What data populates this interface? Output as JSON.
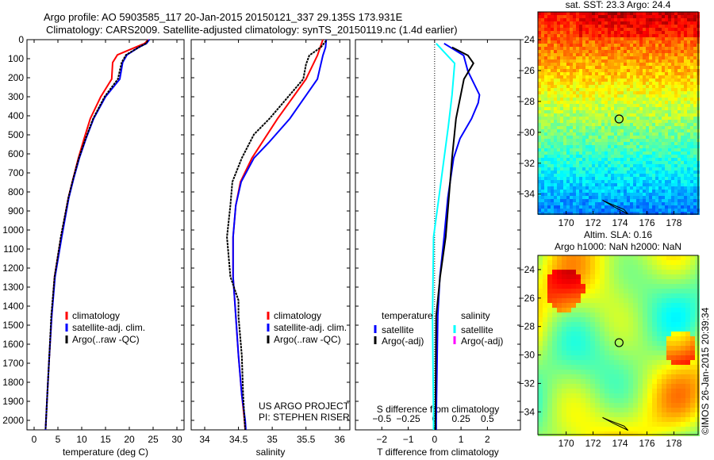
{
  "title_line1": "Argo profile: AO 5903585_117 20-Jan-2015 20150121_337 29.135S 173.931E",
  "title_line2": "Climatology: CARS2009. Satellite-adjusted climatology: synTS_20150119.nc (1.4d earlier)",
  "credit": "©IMOS 26-Jan-2015 20:39:34",
  "project_line1": "US ARGO PROJECT",
  "project_line2": "PI: STEPHEN RISER",
  "colors": {
    "climatology": "#ff0000",
    "satellite": "#0000ff",
    "argo": "#000000",
    "sal_satellite": "#00ffff",
    "sal_argo": "#ff00ff"
  },
  "chart_data": [
    {
      "type": "line",
      "name": "temperature",
      "xlabel": "temperature (deg C)",
      "ylabel": "",
      "xlim": [
        -1.5,
        31.5
      ],
      "ylim": [
        0,
        2050
      ],
      "yreversed": true,
      "xticks": [
        0,
        5,
        10,
        15,
        20,
        25,
        30
      ],
      "yticks": [
        0,
        100,
        200,
        300,
        400,
        500,
        600,
        700,
        800,
        900,
        1000,
        1100,
        1200,
        1300,
        1400,
        1500,
        1600,
        1700,
        1800,
        1900,
        2000
      ],
      "legend": [
        "climatology",
        "satellite-adj. clim.",
        "Argo(..raw -QC)"
      ],
      "series": [
        {
          "name": "climatology",
          "color": "#ff0000",
          "depth": [
            0,
            20,
            40,
            80,
            120,
            207,
            300,
            415,
            520,
            622,
            730,
            830,
            1037,
            1245,
            1452,
            1660,
            1850,
            2000,
            2050
          ],
          "values": [
            24,
            23.2,
            21.3,
            17.5,
            16.5,
            16.3,
            14,
            11.8,
            10.5,
            9.3,
            8.2,
            7.2,
            5.7,
            4.3,
            3.7,
            3.2,
            2.8,
            2.5,
            2.4
          ]
        },
        {
          "name": "satellite-adj. clim.",
          "color": "#0000ff",
          "depth": [
            0,
            20,
            40,
            80,
            120,
            207,
            300,
            415,
            520,
            622,
            730,
            830,
            1037,
            1245,
            1452,
            1660,
            1850,
            2000,
            2050
          ],
          "values": [
            24.2,
            23.6,
            22,
            19.5,
            18.6,
            18,
            15,
            12.5,
            10.9,
            9.5,
            8.3,
            7.3,
            5.8,
            4.4,
            3.7,
            3.2,
            2.8,
            2.5,
            2.4
          ]
        },
        {
          "name": "Argo(..raw -QC)",
          "color": "#000000",
          "depth": [
            5,
            20,
            40,
            80,
            120,
            207,
            300,
            415,
            520,
            622,
            730,
            830,
            1037,
            1245,
            1452,
            1660,
            1850,
            2000,
            2050
          ],
          "values": [
            23.9,
            23.5,
            22,
            19.3,
            18.4,
            17.6,
            14.8,
            12.4,
            10.8,
            9.4,
            8.2,
            7.2,
            5.6,
            4.3,
            3.6,
            3.2,
            2.8,
            2.5,
            2.4
          ]
        }
      ]
    },
    {
      "type": "line",
      "name": "salinity",
      "xlabel": "salinity",
      "ylabel": "",
      "xlim": [
        33.8,
        36.15
      ],
      "ylim": [
        0,
        2050
      ],
      "yreversed": true,
      "xticks": [
        34,
        34.5,
        35,
        35.5,
        36
      ],
      "legend": [
        "climatology",
        "satellite-adj. clim.",
        "Argo(..raw -QC)"
      ],
      "series": [
        {
          "name": "climatology",
          "color": "#ff0000",
          "depth": [
            0,
            20,
            83,
            207,
            415,
            540,
            622,
            747,
            871,
            1037,
            1245,
            1452,
            1660,
            1868,
            2000,
            2050
          ],
          "values": [
            35.75,
            35.73,
            35.67,
            35.5,
            35.08,
            34.85,
            34.7,
            34.53,
            34.46,
            34.42,
            34.42,
            34.46,
            34.5,
            34.55,
            34.59,
            34.6
          ]
        },
        {
          "name": "satellite-adj. clim.",
          "color": "#0000ff",
          "depth": [
            0,
            40,
            83,
            207,
            415,
            540,
            622,
            747,
            871,
            1037,
            1245,
            1452,
            1660,
            1868,
            2000,
            2050
          ],
          "values": [
            35.8,
            35.79,
            35.75,
            35.67,
            35.26,
            34.95,
            34.73,
            34.54,
            34.46,
            34.42,
            34.42,
            34.46,
            34.5,
            34.55,
            34.6,
            34.61
          ]
        },
        {
          "name": "Argo(..raw -QC)",
          "color": "#000000",
          "depth": [
            5,
            40,
            83,
            130,
            207,
            415,
            498,
            622,
            747,
            871,
            1037,
            1245,
            1370,
            1452,
            1660,
            1868,
            2000,
            2050
          ],
          "values": [
            35.8,
            35.72,
            35.55,
            35.5,
            35.46,
            34.96,
            34.73,
            34.55,
            34.41,
            34.38,
            34.33,
            34.38,
            34.5,
            34.5,
            34.55,
            34.57,
            34.59,
            34.6
          ]
        }
      ]
    },
    {
      "type": "line",
      "name": "difference",
      "xlabel": "T difference from climatology",
      "x2label": "S difference from climatology",
      "xlim": [
        -3,
        3.25
      ],
      "ylim": [
        0,
        2050
      ],
      "yreversed": true,
      "xticks": [
        -2,
        -1,
        0,
        1,
        2
      ],
      "x2ticks": [
        -0.5,
        -0.25,
        0,
        0.25,
        0.5
      ],
      "legend_headers": [
        "temperature",
        "salinity"
      ],
      "legend": [
        "satellite",
        "Argo(-adj)",
        "satellite",
        "Argo(-adj)"
      ],
      "series": [
        {
          "name": "T satellite",
          "axis": "T",
          "color": "#0000ff",
          "depth": [
            20,
            83,
            166,
            290,
            332,
            415,
            520,
            622,
            830,
            1037,
            1245,
            1452,
            2000,
            2050
          ],
          "values": [
            0.36,
            1.1,
            1.26,
            1.7,
            1.65,
            1.4,
            0.96,
            0.72,
            0.5,
            0.36,
            0.2,
            0.12,
            0.06,
            0.06
          ]
        },
        {
          "name": "S satellite",
          "axis": "S",
          "color": "#00ffff",
          "depth": [
            20,
            124,
            290,
            456,
            622,
            830,
            1037,
            1452,
            2000,
            2050
          ],
          "values": [
            0.015,
            0.19,
            0.165,
            0.13,
            0.09,
            0.04,
            -0.01,
            -0.02,
            -0.01,
            -0.01
          ]
        },
        {
          "name": "T Argo(-adj)",
          "axis": "T",
          "color": "#000000",
          "depth": [
            40,
            83,
            124,
            207,
            415,
            622,
            830,
            1037,
            1245,
            1452,
            2000,
            2050
          ],
          "values": [
            0.66,
            1.26,
            1.47,
            1.11,
            0.81,
            0.66,
            0.54,
            0.42,
            0.21,
            0.06,
            0.03,
            0.03
          ]
        }
      ]
    },
    {
      "type": "heatmap",
      "name": "sst-map",
      "title": "sat. SST: 23.3 Argo: 24.4",
      "xlim": [
        167.9,
        179.8
      ],
      "ylim": [
        -35.3,
        -22.2
      ],
      "xticks": [
        170,
        172,
        174,
        176,
        178
      ],
      "yticks": [
        -24,
        -26,
        -28,
        -30,
        -32,
        -34
      ],
      "argo_position": [
        173.931,
        -29.135
      ]
    },
    {
      "type": "heatmap",
      "name": "sla-map",
      "title_line1": "Altim. SLA: 0.16",
      "title_line2": "Argo h1000: NaN h2000: NaN",
      "xlim": [
        167.9,
        179.8
      ],
      "ylim": [
        -35.6,
        -23.0
      ],
      "xticks": [
        170,
        172,
        174,
        176,
        178
      ],
      "yticks": [
        -24,
        -26,
        -28,
        -30,
        -32,
        -34
      ],
      "argo_position": [
        173.931,
        -29.135
      ]
    }
  ]
}
